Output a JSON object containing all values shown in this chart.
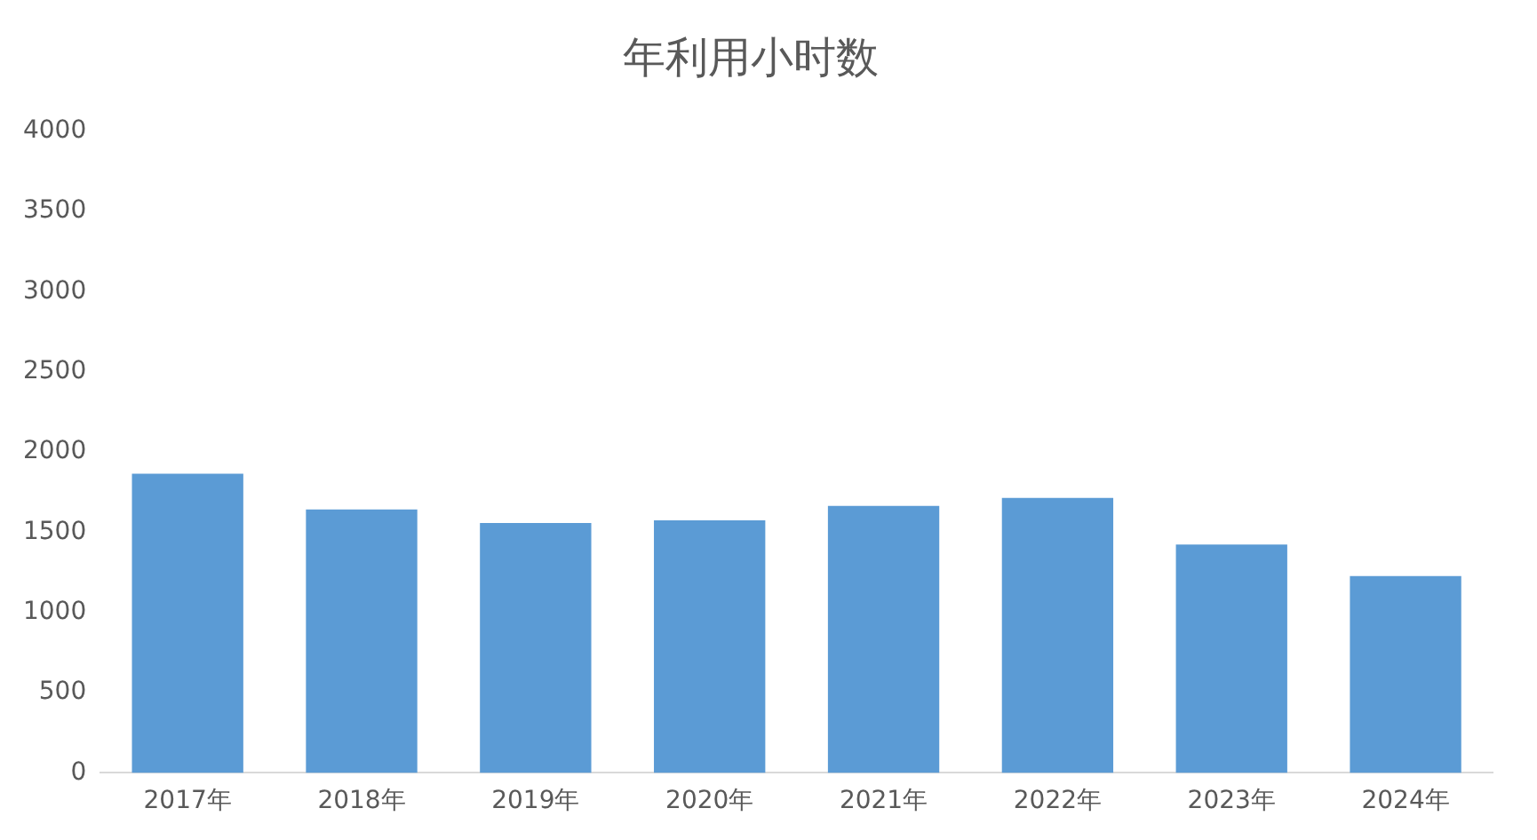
{
  "chart_data": {
    "type": "bar",
    "title": "年利用小时数",
    "categories": [
      "2017年",
      "2018年",
      "2019年",
      "2020年",
      "2021年",
      "2022年",
      "2023年",
      "2024年"
    ],
    "values": [
      1865,
      1641,
      1557,
      1574,
      1664,
      1714,
      1423,
      1227
    ],
    "color": "#5b9bd5",
    "ylim": [
      0,
      4000
    ],
    "yticks": [
      0,
      500,
      1000,
      1500,
      2000,
      2500,
      3000,
      3500,
      4000
    ],
    "grid": false
  }
}
